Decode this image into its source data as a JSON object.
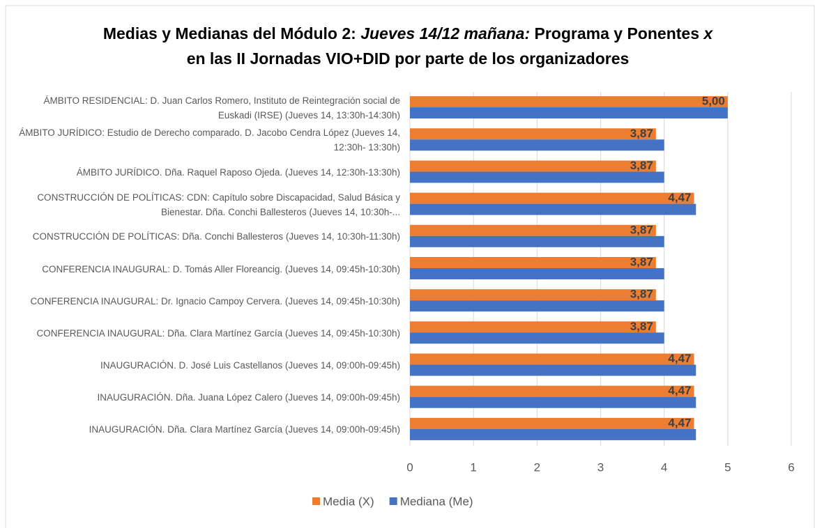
{
  "chart_data": {
    "type": "bar",
    "orientation": "horizontal",
    "title": [
      "Medias y Medianas del Módulo 2: ",
      "Jueves 14/12 mañana:",
      " Programa y Ponentes ",
      "x",
      " en las II Jornadas VIO+DID por parte de los organizadores"
    ],
    "categories": [
      "ÁMBITO RESIDENCIAL: D. Juan Carlos Romero, Instituto de Reintegración social de Euskadi (IRSE) (Jueves 14, 13:30h-14:30h)",
      "ÁMBITO JURÍDICO: Estudio de Derecho comparado. D. Jacobo Cendra López (Jueves 14, 12:30h- 13:30h)",
      "ÁMBITO JURÍDICO. Dña. Raquel Raposo Ojeda. (Jueves 14, 12:30h-13:30h)",
      "CONSTRUCCIÓN DE POLÍTICAS:  CDN: Capítulo sobre Discapacidad, Salud Básica y Bienestar. Dña. Conchi Ballesteros (Jueves 14, 10:30h-...",
      "CONSTRUCCIÓN DE POLÍTICAS: Dña. Conchi Ballesteros (Jueves 14, 10:30h-11:30h)",
      "CONFERENCIA INAUGURAL: D. Tomás Aller Floreancig. (Jueves 14, 09:45h-10:30h)",
      "CONFERENCIA INAUGURAL: Dr. Ignacio Campoy Cervera. (Jueves 14, 09:45h-10:30h)",
      "CONFERENCIA INAUGURAL: Dña. Clara Martínez García (Jueves 14, 09:45h-10:30h)",
      "INAUGURACIÓN. D. José Luis Castellanos (Jueves 14, 09:00h-09:45h)",
      "INAUGURACIÓN. Dña. Juana López Calero (Jueves 14, 09:00h-09:45h)",
      "INAUGURACIÓN. Dña. Clara Martínez García (Jueves 14, 09:00h-09:45h)"
    ],
    "series": [
      {
        "name": "Media (X)",
        "color": "#ed7d31",
        "values": [
          5.0,
          3.87,
          3.87,
          4.47,
          3.87,
          3.87,
          3.87,
          3.87,
          4.47,
          4.47,
          4.47
        ],
        "value_labels": [
          "5,00",
          "3,87",
          "3,87",
          "4,47",
          "3,87",
          "3,87",
          "3,87",
          "3,87",
          "4,47",
          "4,47",
          "4,47"
        ]
      },
      {
        "name": "Mediana (Me)",
        "color": "#4472c4",
        "values": [
          5,
          4,
          4,
          4.5,
          4,
          4,
          4,
          4,
          4.5,
          4.5,
          4.5
        ]
      }
    ],
    "xlim": [
      0,
      6
    ],
    "xticks": [
      0,
      1,
      2,
      3,
      4,
      5,
      6
    ],
    "grid": true,
    "legend": "bottom"
  }
}
